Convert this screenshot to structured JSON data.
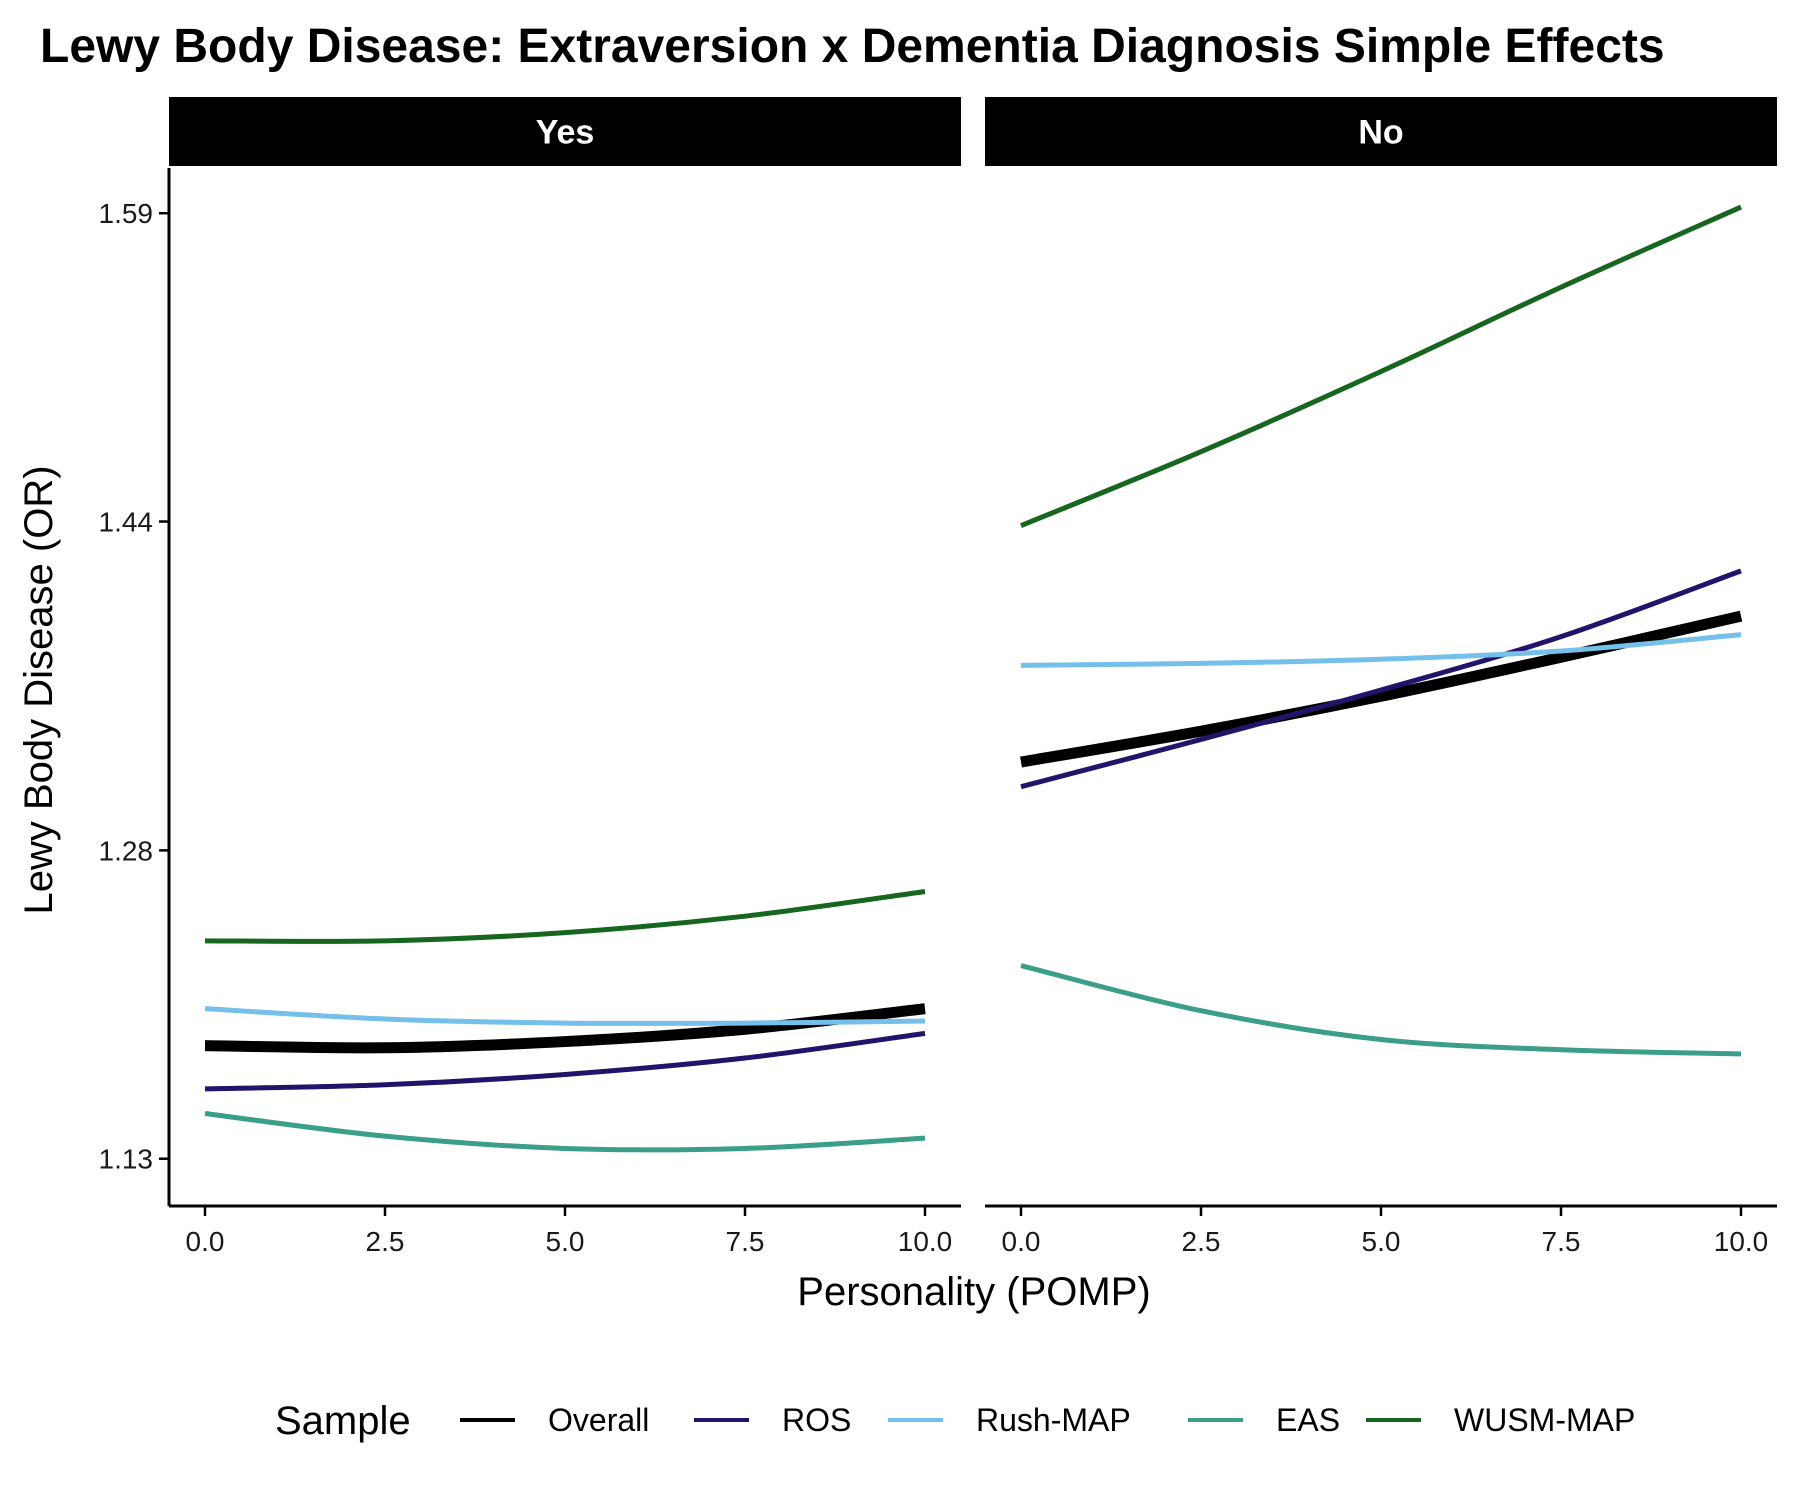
{
  "chart_data": {
    "type": "line",
    "title": "Lewy Body Disease: Extraversion x Dementia Diagnosis Simple Effects",
    "xlabel": "Personality (POMP)",
    "ylabel": "Lewy Body Disease (OR)",
    "xlim": [
      -0.5,
      10.5
    ],
    "ylim": [
      1.107,
      1.612
    ],
    "x_ticks": [
      0,
      2.5,
      5,
      7.5,
      10
    ],
    "x_tick_labels": [
      "0.0",
      "2.5",
      "5.0",
      "7.5",
      "10.0"
    ],
    "y_ticks": [
      1.13,
      1.28,
      1.44,
      1.59
    ],
    "y_tick_labels": [
      "1.13",
      "1.28",
      "1.44",
      "1.59"
    ],
    "grid": false,
    "legend": {
      "title": "Sample",
      "position": "bottom",
      "entries": [
        "Overall",
        "ROS",
        "Rush-MAP",
        "EAS",
        "WUSM-MAP"
      ]
    },
    "colors": {
      "Overall": "#000000",
      "ROS": "#24136b",
      "Rush-MAP": "#74c0ea",
      "EAS": "#3a9e89",
      "WUSM-MAP": "#17661f"
    },
    "x": [
      0,
      2.5,
      5,
      7.5,
      10
    ],
    "panels": [
      {
        "label": "Yes",
        "series": [
          {
            "name": "Overall",
            "values": [
              1.185,
              1.184,
              1.187,
              1.193,
              1.203
            ]
          },
          {
            "name": "ROS",
            "values": [
              1.164,
              1.166,
              1.171,
              1.179,
              1.191
            ]
          },
          {
            "name": "Rush-MAP",
            "values": [
              1.203,
              1.198,
              1.196,
              1.196,
              1.197
            ]
          },
          {
            "name": "EAS",
            "values": [
              1.152,
              1.141,
              1.135,
              1.135,
              1.14
            ]
          },
          {
            "name": "WUSM-MAP",
            "values": [
              1.236,
              1.236,
              1.24,
              1.248,
              1.26
            ]
          }
        ]
      },
      {
        "label": "No",
        "series": [
          {
            "name": "Overall",
            "values": [
              1.323,
              1.338,
              1.355,
              1.374,
              1.394
            ]
          },
          {
            "name": "ROS",
            "values": [
              1.311,
              1.334,
              1.358,
              1.384,
              1.416
            ]
          },
          {
            "name": "Rush-MAP",
            "values": [
              1.37,
              1.371,
              1.373,
              1.377,
              1.385
            ]
          },
          {
            "name": "EAS",
            "values": [
              1.224,
              1.202,
              1.188,
              1.183,
              1.181
            ]
          },
          {
            "name": "WUSM-MAP",
            "values": [
              1.438,
              1.474,
              1.513,
              1.554,
              1.593
            ]
          }
        ]
      }
    ]
  }
}
